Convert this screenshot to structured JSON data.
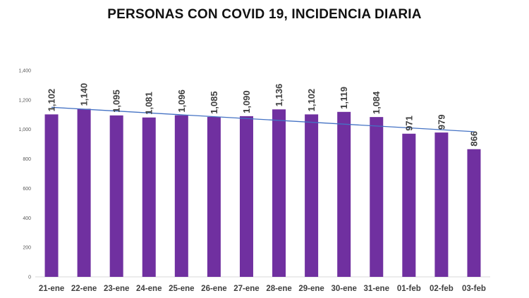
{
  "chart_data": {
    "type": "bar",
    "title": "PERSONAS CON COVID 19, INCIDENCIA DIARIA",
    "xlabel": "",
    "ylabel": "",
    "categories": [
      "21-ene",
      "22-ene",
      "23-ene",
      "24-ene",
      "25-ene",
      "26-ene",
      "27-ene",
      "28-ene",
      "29-ene",
      "30-ene",
      "31-ene",
      "01-feb",
      "02-feb",
      "03-feb"
    ],
    "values": [
      1102,
      1140,
      1095,
      1081,
      1096,
      1085,
      1090,
      1136,
      1102,
      1119,
      1084,
      971,
      979,
      866
    ],
    "data_labels": [
      "1,102",
      "1,140",
      "1,095",
      "1,081",
      "1,096",
      "1,085",
      "1,090",
      "1,136",
      "1,102",
      "1,119",
      "1,084",
      "971",
      "979",
      "866"
    ],
    "ylim": [
      0,
      1400
    ],
    "yticks": [
      0,
      200,
      400,
      600,
      800,
      1000,
      1200,
      1400
    ],
    "ytick_labels": [
      "0",
      "200",
      "400",
      "600",
      "800",
      "1,000",
      "1,200",
      "1,400"
    ],
    "trendline": {
      "type": "linear",
      "start": 1150,
      "end": 985
    },
    "grid": false,
    "legend": "none",
    "bar_color": "#7030a0",
    "trend_color": "#4472c4"
  }
}
